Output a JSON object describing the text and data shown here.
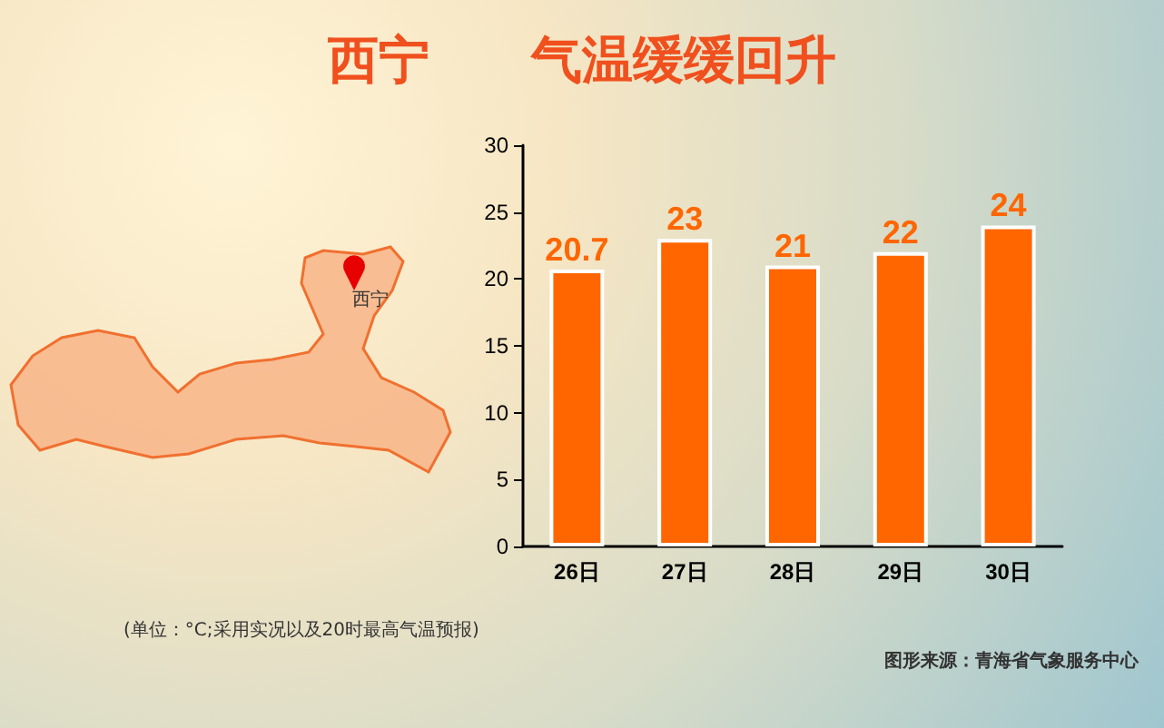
{
  "chart_data": {
    "type": "bar",
    "title": "西宁　　气温缓缓回升",
    "categories": [
      "26日",
      "27日",
      "28日",
      "29日",
      "30日"
    ],
    "values": [
      20.7,
      23,
      21,
      22,
      24
    ],
    "color": "#ff6600",
    "ylim": [
      0,
      30
    ],
    "yticks": [
      0,
      5,
      10,
      15,
      20,
      25,
      30
    ],
    "grid": false,
    "data_labels": true,
    "annotations": [
      "西宁",
      "(单位：°C;采用实况以及20时最高气温预报)",
      "图形来源：青海省气象服务中心"
    ]
  }
}
